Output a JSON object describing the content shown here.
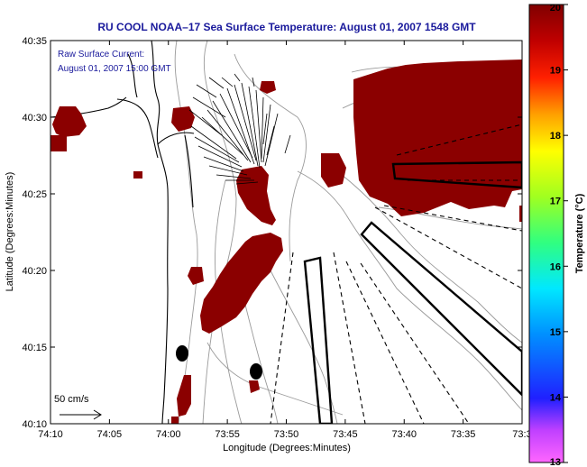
{
  "title": "RU COOL  NOAA–17  Sea Surface Temperature:  August 01, 2007 1548 GMT",
  "current_info": {
    "line1": "Raw Surface Current:",
    "line2": "August 01, 2007 15:00 GMT"
  },
  "scale_label": "50 cm/s",
  "axes": {
    "xlabel": "Longitude (Degrees:Minutes)",
    "ylabel": "Latitude (Degrees:Minutes)",
    "x_ticks": [
      "74:10",
      "74:05",
      "74:00",
      "73:55",
      "73:50",
      "73:45",
      "73:40",
      "73:35",
      "73:3"
    ],
    "y_ticks": [
      "40:35",
      "40:30",
      "40:25",
      "40:20",
      "40:15",
      "40:10"
    ]
  },
  "colorbar": {
    "label": "Temperature (°C)",
    "min": 13,
    "max": 20,
    "ticks": [
      "20",
      "19",
      "18",
      "17",
      "16",
      "15",
      "14",
      "13"
    ]
  },
  "colors": {
    "title": "#1a1a9c",
    "sst_patch": "#8b0000",
    "coast": "#000000",
    "bathymetry": "#9a9a9a"
  }
}
